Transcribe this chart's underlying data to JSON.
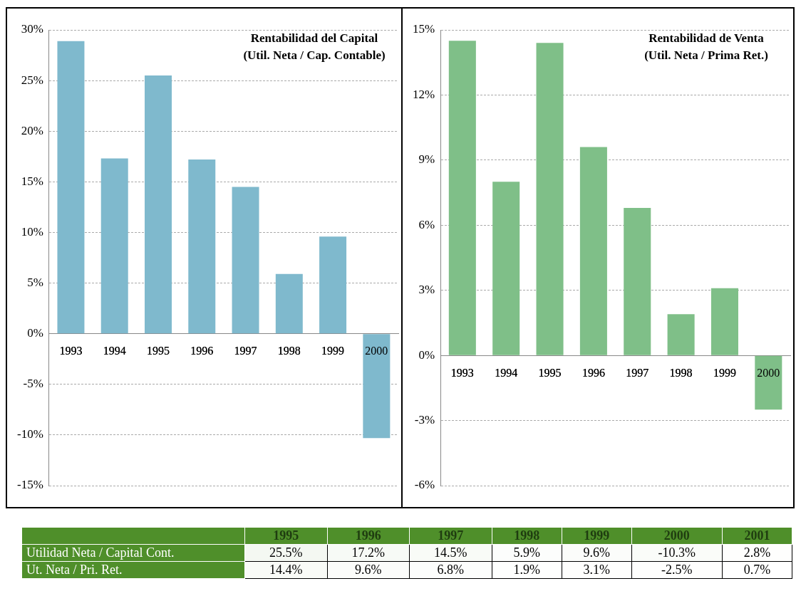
{
  "chart_data": [
    {
      "type": "bar",
      "title": "Rentabilidad del Capital",
      "subtitle": "(Util. Neta / Cap. Contable)",
      "categories": [
        "1993",
        "1994",
        "1995",
        "1996",
        "1997",
        "1998",
        "1999",
        "2000"
      ],
      "series": [
        {
          "color": "#7fb9cd",
          "values": [
            28.9,
            17.3,
            25.5,
            17.2,
            14.5,
            5.9,
            9.6,
            -10.3
          ]
        }
      ],
      "ylim": [
        -15,
        30
      ],
      "yticks": [
        {
          "value": 30,
          "label": "30%"
        },
        {
          "value": 25,
          "label": "25%"
        },
        {
          "value": 20,
          "label": "20%"
        },
        {
          "value": 15,
          "label": "15%"
        },
        {
          "value": 10,
          "label": "10%"
        },
        {
          "value": 5,
          "label": "5%"
        },
        {
          "value": 0,
          "label": "0%"
        },
        {
          "value": -5,
          "label": "-5%"
        },
        {
          "value": -10,
          "label": "-10%"
        },
        {
          "value": -15,
          "label": "-15%"
        }
      ],
      "grid": "y",
      "legend": false
    },
    {
      "type": "bar",
      "title": "Rentabilidad de Venta",
      "subtitle": "(Util. Neta / Prima Ret.)",
      "categories": [
        "1993",
        "1994",
        "1995",
        "1996",
        "1997",
        "1998",
        "1999",
        "2000"
      ],
      "series": [
        {
          "color": "#7fbf88",
          "values": [
            14.5,
            8.0,
            14.4,
            9.6,
            6.8,
            1.9,
            3.1,
            -2.5
          ]
        }
      ],
      "ylim": [
        -6,
        15
      ],
      "yticks": [
        {
          "value": 15,
          "label": "15%"
        },
        {
          "value": 12,
          "label": "12%"
        },
        {
          "value": 9,
          "label": "9%"
        },
        {
          "value": 6,
          "label": "6%"
        },
        {
          "value": 3,
          "label": "3%"
        },
        {
          "value": 0,
          "label": "0%"
        },
        {
          "value": -3,
          "label": "-3%"
        },
        {
          "value": -6,
          "label": "-6%"
        }
      ],
      "grid": "y",
      "legend": false
    },
    {
      "type": "heatmap",
      "categories": [
        "1995",
        "1996",
        "1997",
        "1998",
        "1999",
        "2000",
        "2001"
      ],
      "y_categories": [
        "Utilidad Neta / Capital Cont.",
        "Ut. Neta / Pri. Ret."
      ],
      "cells": [
        [
          25.5,
          17.2,
          14.5,
          5.9,
          9.6,
          -10.3,
          2.8
        ],
        [
          14.4,
          9.6,
          6.8,
          1.9,
          3.1,
          -2.5,
          0.7
        ]
      ],
      "cell_labels": [
        [
          "25.5%",
          "17.2%",
          "14.5%",
          "5.9%",
          "9.6%",
          "-10.3%",
          "2.8%"
        ],
        [
          "14.4%",
          "9.6%",
          "6.8%",
          "1.9%",
          "3.1%",
          "-2.5%",
          "0.7%"
        ]
      ]
    }
  ]
}
